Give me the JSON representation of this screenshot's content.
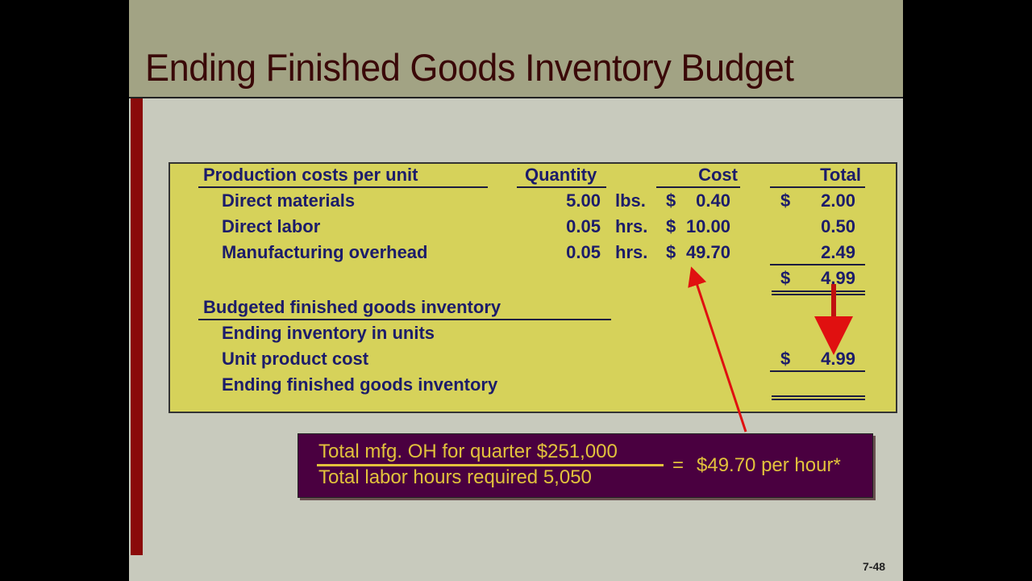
{
  "title": "Ending Finished Goods Inventory Budget",
  "table": {
    "headers": {
      "label": "Production costs per unit",
      "quantity": "Quantity",
      "cost": "Cost",
      "total": "Total"
    },
    "rows": [
      {
        "label": "Direct materials",
        "quantity": "5.00",
        "unit": "lbs.",
        "cost_sign": "$",
        "cost": "0.40",
        "total_sign": "$",
        "total": "2.00"
      },
      {
        "label": "Direct labor",
        "quantity": "0.05",
        "unit": "hrs.",
        "cost_sign": "$",
        "cost": "10.00",
        "total": "0.50"
      },
      {
        "label": "Manufacturing overhead",
        "quantity": "0.05",
        "unit": "hrs.",
        "cost_sign": "$",
        "cost": "49.70",
        "total": "2.49"
      }
    ],
    "unit_total_sign": "$",
    "unit_total": "4.99",
    "section2": {
      "heading": "Budgeted finished goods inventory",
      "ending_units_label": "Ending inventory in units",
      "unit_cost_label": "Unit product cost",
      "unit_cost_sign": "$",
      "unit_cost": "4.99",
      "ending_fg_label": "Ending finished goods inventory"
    }
  },
  "callout": {
    "numerator": "Total mfg. OH for quarter  $251,000",
    "denominator": "Total labor hours required    5,050",
    "equals": "=",
    "result": "$49.70 per hour*"
  },
  "page_number": "7-48",
  "colors": {
    "title_band": "#a2a384",
    "table_fill": "#d6d25a",
    "text_navy": "#1c1c6a",
    "callout_fill": "#4a0040",
    "callout_text": "#e2c23c",
    "arrow": "#e01010",
    "accent_bar": "#8a0a0a"
  }
}
